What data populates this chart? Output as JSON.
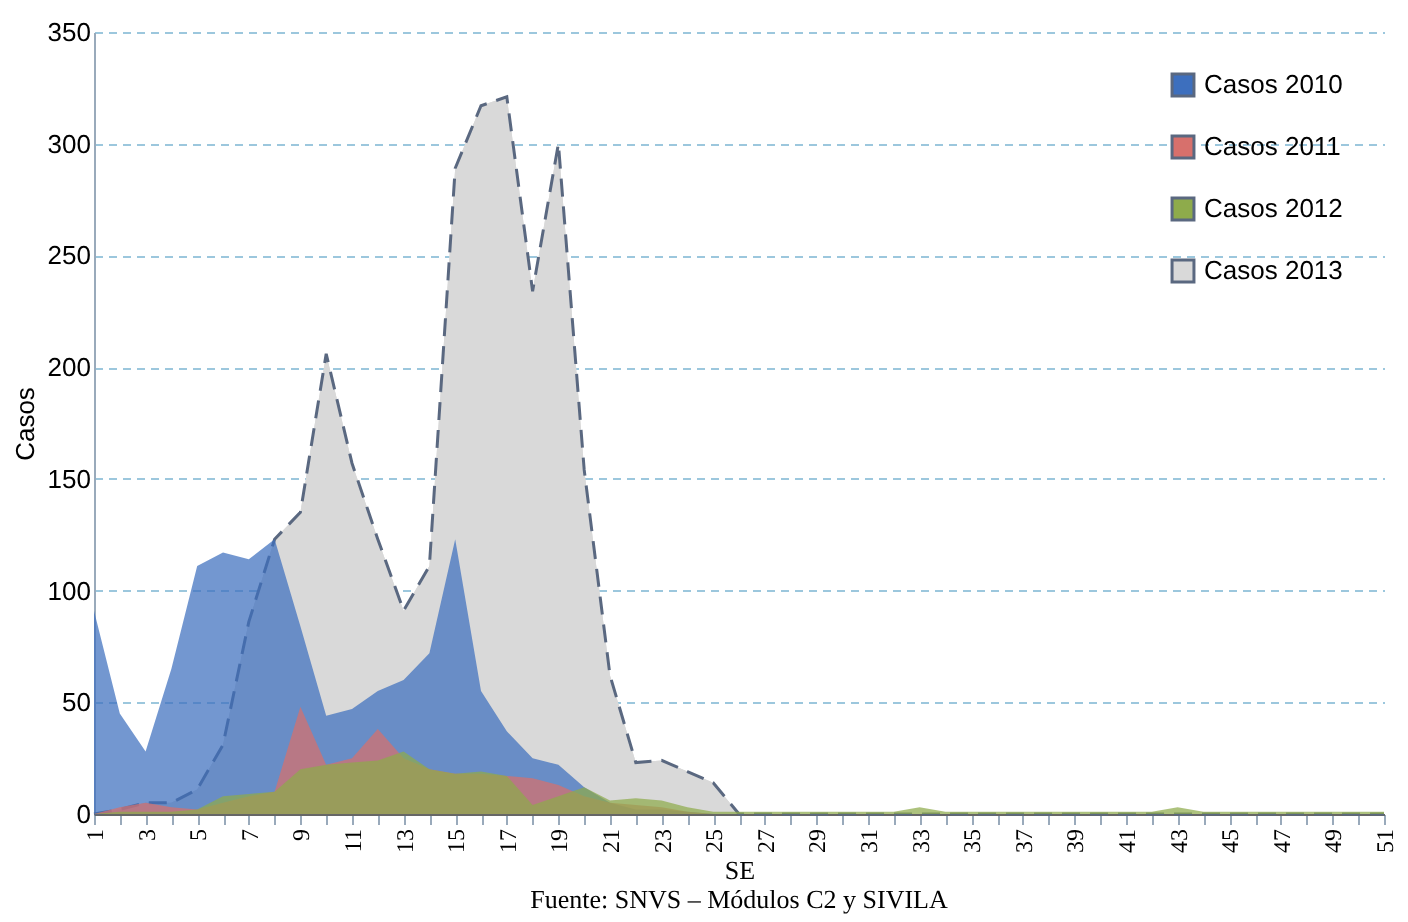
{
  "chart_data": {
    "type": "area",
    "categories": [
      "1",
      null,
      "3",
      null,
      "5",
      null,
      "7",
      null,
      "9",
      null,
      "11",
      null,
      "13",
      null,
      "15",
      null,
      "17",
      null,
      "19",
      null,
      "21",
      null,
      "23",
      null,
      "25",
      null,
      "27",
      null,
      "29",
      null,
      "31",
      null,
      "33",
      null,
      "35",
      null,
      "37",
      null,
      "39",
      null,
      "41",
      null,
      "43",
      null,
      "45",
      null,
      "47",
      null,
      "49",
      null,
      "51"
    ],
    "series": [
      {
        "name": "Casos 2010",
        "color": "#3d6fbe",
        "values": [
          91,
          45,
          28,
          65,
          111,
          117,
          114,
          123,
          84,
          44,
          47,
          55,
          60,
          72,
          123,
          55,
          37,
          25,
          22,
          12,
          5,
          2,
          2,
          1,
          0,
          0,
          0,
          0,
          0,
          0,
          0,
          0,
          0,
          0,
          0,
          0,
          0,
          0,
          0,
          0,
          0,
          0,
          0,
          0,
          0,
          0,
          0,
          0,
          0,
          0,
          0
        ]
      },
      {
        "name": "Casos 2011",
        "color": "#d7706c",
        "values": [
          0,
          3,
          5,
          3,
          2,
          5,
          8,
          10,
          48,
          22,
          25,
          38,
          25,
          20,
          18,
          18,
          17,
          16,
          13,
          8,
          5,
          4,
          3,
          1,
          0,
          0,
          0,
          0,
          0,
          0,
          0,
          0,
          0,
          0,
          0,
          0,
          0,
          0,
          0,
          0,
          0,
          0,
          0,
          0,
          0,
          0,
          0,
          0,
          0,
          0,
          0
        ]
      },
      {
        "name": "Casos 2012",
        "color": "#8eab4b",
        "values": [
          0,
          1,
          1,
          1,
          2,
          8,
          9,
          10,
          20,
          22,
          23,
          24,
          28,
          20,
          18,
          19,
          17,
          4,
          8,
          12,
          6,
          7,
          6,
          3,
          1,
          1,
          1,
          1,
          1,
          1,
          1,
          1,
          3,
          1,
          1,
          1,
          1,
          1,
          1,
          1,
          1,
          1,
          3,
          1,
          1,
          1,
          1,
          1,
          1,
          1,
          1
        ]
      },
      {
        "name": "Casos 2013",
        "color": "#d9d9d9",
        "line_style": "dashed",
        "values": [
          0,
          2,
          5,
          5,
          11,
          31,
          86,
          123,
          135,
          206,
          157,
          123,
          91,
          111,
          289,
          317,
          321,
          234,
          300,
          154,
          62,
          23,
          24,
          19,
          14,
          0,
          0,
          0,
          0,
          0,
          0,
          0,
          0,
          0,
          0,
          0,
          0,
          0,
          0,
          0,
          0,
          0,
          0,
          0,
          0,
          0,
          0,
          0,
          0,
          0,
          0
        ]
      }
    ],
    "xlabel": "SE",
    "ylabel": "Casos",
    "ylim": [
      0,
      350
    ],
    "yticks": [
      0,
      50,
      100,
      150,
      200,
      250,
      300,
      350
    ],
    "grid": "y",
    "legend": "top right",
    "marker": "none",
    "annotations": [
      "Fuente: SNVS – Módulos C2 y SIVILA"
    ]
  }
}
